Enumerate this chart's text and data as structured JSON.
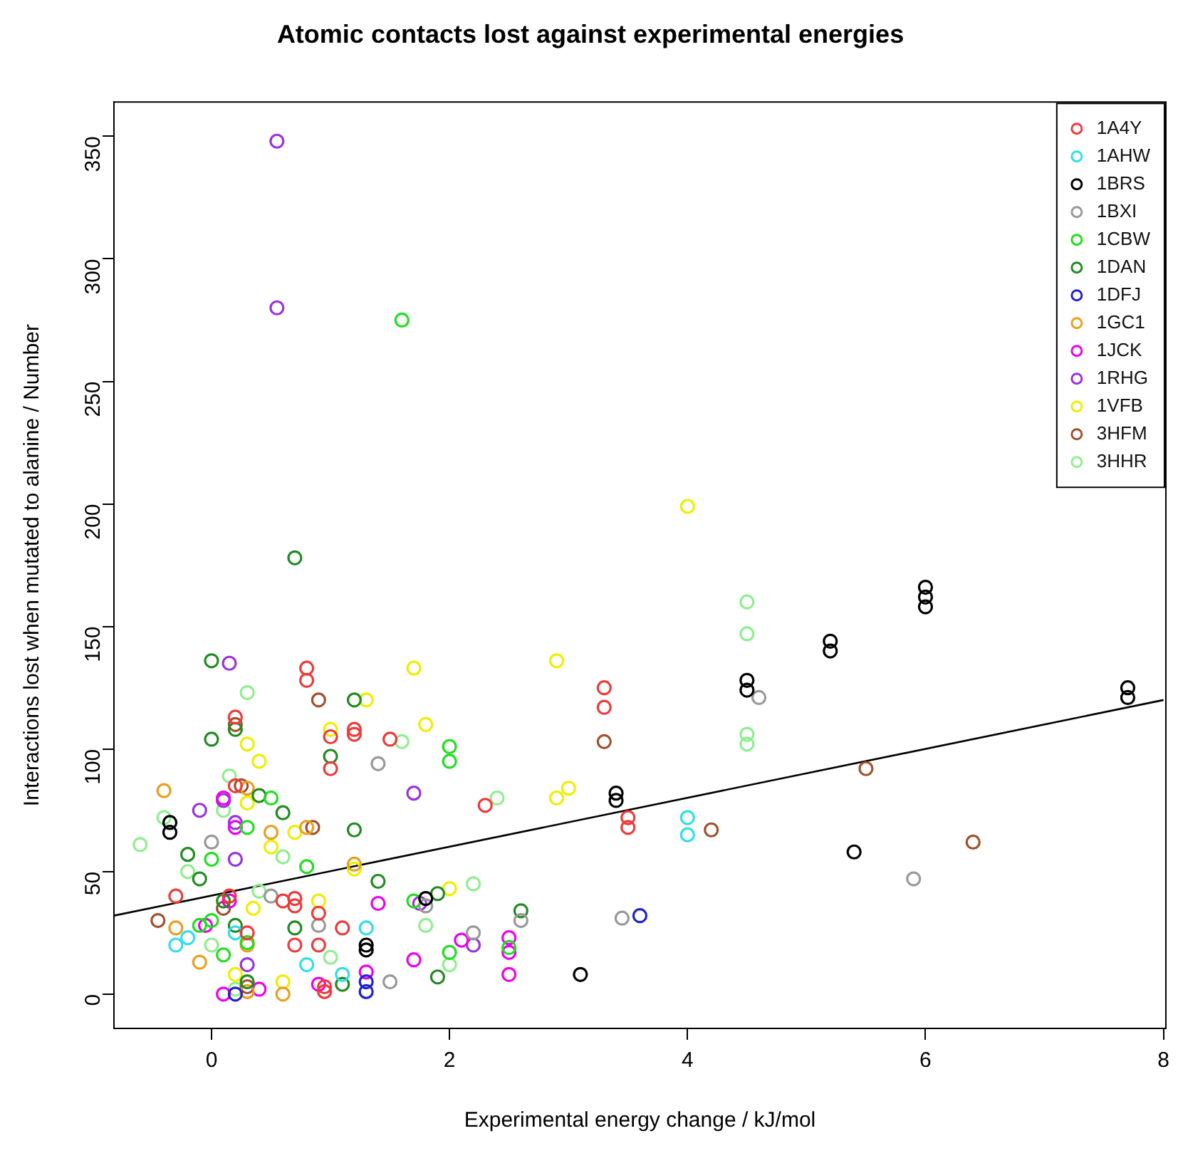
{
  "chart_data": {
    "type": "scatter",
    "title": "Atomic contacts lost against experimental energies",
    "xlabel": "Experimental energy change / kJ/mol",
    "ylabel": "Interactions lost when mutated to alanine / Number",
    "xlim": [
      -0.82,
      8.02
    ],
    "ylim": [
      -14,
      364
    ],
    "xticks": [
      0,
      2,
      4,
      6,
      8
    ],
    "yticks": [
      0,
      50,
      100,
      150,
      200,
      250,
      300,
      350
    ],
    "grid": false,
    "legend": "top right",
    "marker": "circle",
    "series": [
      {
        "name": "1A4Y",
        "color": "#ee3b3b",
        "x": [
          0.8,
          0.8,
          1.2,
          1.2,
          1.5,
          0.2,
          0.2,
          0.7,
          0.9,
          0.9,
          0.95,
          3.3,
          3.3,
          3.5,
          3.5,
          2.3,
          1.0,
          1.0,
          0.15,
          -0.3,
          0.7,
          0.95,
          0.3,
          0.7,
          1.1,
          0.6
        ],
        "values": [
          133,
          128,
          108,
          106,
          104,
          85,
          113,
          39,
          33,
          20,
          3,
          125,
          117,
          72,
          68,
          77,
          92,
          105,
          40,
          40,
          36,
          1,
          25,
          20,
          27,
          38
        ]
      },
      {
        "name": "1AHW",
        "color": "#33dde8",
        "x": [
          4.0,
          4.0,
          -0.3,
          0.2,
          1.3,
          1.1,
          0.8,
          -0.2
        ],
        "values": [
          72,
          65,
          20,
          25,
          27,
          8,
          12,
          23
        ]
      },
      {
        "name": "1BRS",
        "color": "#000000",
        "x": [
          -0.35,
          -0.35,
          3.4,
          3.4,
          4.5,
          4.5,
          5.2,
          5.2,
          6,
          6,
          6,
          7.7,
          7.7,
          5.4,
          3.1,
          1.3,
          1.3,
          1.8
        ],
        "values": [
          70,
          66,
          82,
          79,
          128,
          124,
          144,
          140,
          166,
          162,
          158,
          125,
          121,
          58,
          8,
          20,
          18,
          39
        ]
      },
      {
        "name": "1BXI",
        "color": "#999999",
        "x": [
          5.9,
          3.45,
          4.6,
          1.4,
          1.5,
          0.9,
          1.8,
          2.6,
          2.2,
          0,
          0.5
        ],
        "values": [
          47,
          31,
          121,
          94,
          5,
          28,
          36,
          30,
          25,
          62,
          40
        ]
      },
      {
        "name": "1CBW",
        "color": "#22dd22",
        "x": [
          1.6,
          2.0,
          2.0,
          0.0,
          0.3,
          0.5,
          0.8,
          -0.1,
          0.3,
          1.7,
          2.0,
          2.5,
          0.1,
          0
        ],
        "values": [
          275,
          101,
          95,
          55,
          68,
          80,
          52,
          28,
          21,
          38,
          17,
          19,
          16,
          30
        ]
      },
      {
        "name": "1DAN",
        "color": "#228b22",
        "x": [
          0.7,
          0,
          0,
          0.2,
          1.0,
          1.2,
          1.2,
          -0.2,
          -0.1,
          0.4,
          0.6,
          1.4,
          1.9,
          2.6,
          0.1,
          0.2,
          0.3,
          1.1,
          1.9,
          0.7
        ],
        "values": [
          178,
          136,
          104,
          108,
          97,
          120,
          67,
          57,
          47,
          81,
          74,
          46,
          41,
          34,
          38,
          28,
          5,
          4,
          7,
          27
        ]
      },
      {
        "name": "1DFJ",
        "color": "#2222cc",
        "x": [
          3.6,
          1.3,
          1.3,
          0.2
        ],
        "values": [
          32,
          1,
          5,
          0
        ]
      },
      {
        "name": "1GC1",
        "color": "#e8a020",
        "x": [
          -0.4,
          0.3,
          0.5,
          0.8,
          0.6,
          1.2,
          0.3,
          -0.3,
          -0.1,
          0.3
        ],
        "values": [
          83,
          84,
          66,
          68,
          0,
          53,
          1,
          27,
          13,
          20
        ]
      },
      {
        "name": "1JCK",
        "color": "#ee00ee",
        "x": [
          0.1,
          1.4,
          2.5,
          2.5,
          2.5,
          1.3,
          1.7,
          0.2,
          0.1,
          0.9,
          2.1,
          -0.05,
          0.15,
          0.4
        ],
        "values": [
          80,
          37,
          23,
          17,
          8,
          9,
          14,
          68,
          0,
          4,
          22,
          28,
          38,
          2
        ]
      },
      {
        "name": "1RHG",
        "color": "#9933dd",
        "x": [
          0.55,
          0.55,
          0.15,
          0.1,
          1.7,
          -0.1,
          0.2,
          2.2,
          1.75,
          0.3,
          0.2
        ],
        "values": [
          348,
          280,
          135,
          79,
          82,
          75,
          55,
          20,
          37,
          12,
          70
        ]
      },
      {
        "name": "1VFB",
        "color": "#eeee00",
        "x": [
          4.0,
          2.9,
          1.7,
          1.8,
          1.3,
          3.0,
          2.9,
          2.0,
          0.3,
          0.4,
          0.3,
          0.7,
          1.0,
          0.5,
          0.9,
          0.35,
          1.2,
          0.2,
          0.6
        ],
        "values": [
          199,
          136,
          133,
          110,
          120,
          84,
          80,
          43,
          102,
          95,
          78,
          66,
          108,
          60,
          38,
          35,
          51,
          8,
          5
        ]
      },
      {
        "name": "3HFM",
        "color": "#a0522d",
        "x": [
          3.3,
          5.5,
          4.2,
          6.4,
          0.2,
          0.9,
          0.85,
          -0.45,
          0.25,
          0.3,
          0.1
        ],
        "values": [
          103,
          92,
          67,
          62,
          110,
          120,
          68,
          30,
          85,
          3,
          35
        ]
      },
      {
        "name": "3HHR",
        "color": "#90ee90",
        "x": [
          4.5,
          4.5,
          4.5,
          4.5,
          0.3,
          1.6,
          -0.6,
          -0.4,
          0.15,
          2.4,
          2.2,
          2.0,
          0.4,
          1.8,
          0.0,
          0.2,
          1.0,
          -0.2,
          0.1,
          0.6
        ],
        "values": [
          160,
          147,
          106,
          102,
          123,
          103,
          61,
          72,
          89,
          80,
          45,
          12,
          42,
          28,
          20,
          2,
          15,
          50,
          75,
          56
        ]
      },
      {
        "type": "line",
        "color": "#000000",
        "marker": "none",
        "x": [
          -0.82,
          8.0
        ],
        "values": [
          32,
          120
        ]
      }
    ]
  }
}
